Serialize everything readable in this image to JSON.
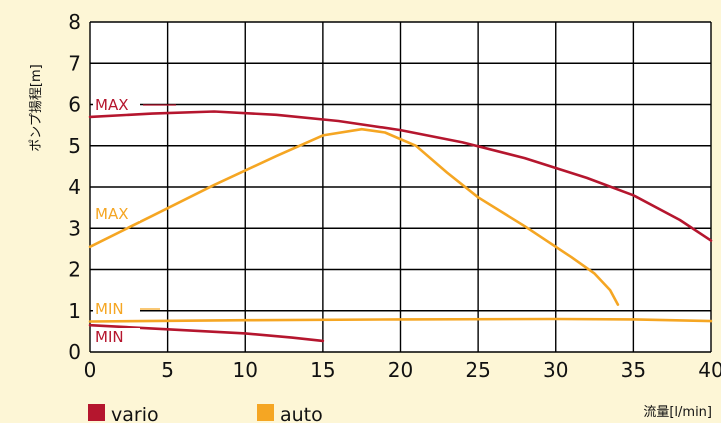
{
  "chart_data": {
    "type": "line",
    "title": "",
    "xlabel": "流量[l/min]",
    "ylabel": "ポンプ揚程[m]",
    "xlim": [
      0,
      40
    ],
    "ylim": [
      0,
      8
    ],
    "x_ticks": [
      "0",
      "5",
      "10",
      "15",
      "20",
      "25",
      "30",
      "35",
      "40"
    ],
    "y_ticks": [
      "0",
      "1",
      "2",
      "3",
      "4",
      "5",
      "6",
      "7",
      "8"
    ],
    "grid": true,
    "legend_position": "bottom-left",
    "colors": {
      "vario": "#b5162e",
      "auto": "#f5a623"
    },
    "legend": [
      {
        "name": "vario",
        "color": "#b5162e"
      },
      {
        "name": "auto",
        "color": "#f5a623"
      }
    ],
    "series": [
      {
        "name": "vario",
        "curve_label": "MAX",
        "color": "#b5162e",
        "points": [
          [
            0,
            5.7
          ],
          [
            4,
            5.78
          ],
          [
            8,
            5.83
          ],
          [
            12,
            5.75
          ],
          [
            16,
            5.6
          ],
          [
            20,
            5.38
          ],
          [
            24,
            5.08
          ],
          [
            28,
            4.7
          ],
          [
            32,
            4.22
          ],
          [
            35,
            3.8
          ],
          [
            38,
            3.2
          ],
          [
            40,
            2.7
          ]
        ]
      },
      {
        "name": "vario",
        "curve_label": "MIN",
        "color": "#b5162e",
        "points": [
          [
            0,
            0.65
          ],
          [
            5,
            0.55
          ],
          [
            10,
            0.45
          ],
          [
            13,
            0.35
          ],
          [
            15,
            0.27
          ]
        ]
      },
      {
        "name": "auto",
        "curve_label": "MAX",
        "color": "#f5a623",
        "points": [
          [
            0,
            2.55
          ],
          [
            4,
            3.3
          ],
          [
            8,
            4.05
          ],
          [
            12,
            4.75
          ],
          [
            15,
            5.25
          ],
          [
            17.5,
            5.4
          ],
          [
            19,
            5.32
          ],
          [
            21,
            5.0
          ],
          [
            23,
            4.35
          ],
          [
            25,
            3.75
          ],
          [
            28,
            3.05
          ],
          [
            31,
            2.3
          ],
          [
            32.5,
            1.9
          ],
          [
            33.5,
            1.5
          ],
          [
            34,
            1.15
          ]
        ]
      },
      {
        "name": "auto",
        "curve_label": "MIN",
        "color": "#f5a623",
        "points": [
          [
            0,
            0.74
          ],
          [
            10,
            0.77
          ],
          [
            20,
            0.79
          ],
          [
            30,
            0.8
          ],
          [
            35,
            0.79
          ],
          [
            40,
            0.75
          ]
        ]
      }
    ]
  }
}
